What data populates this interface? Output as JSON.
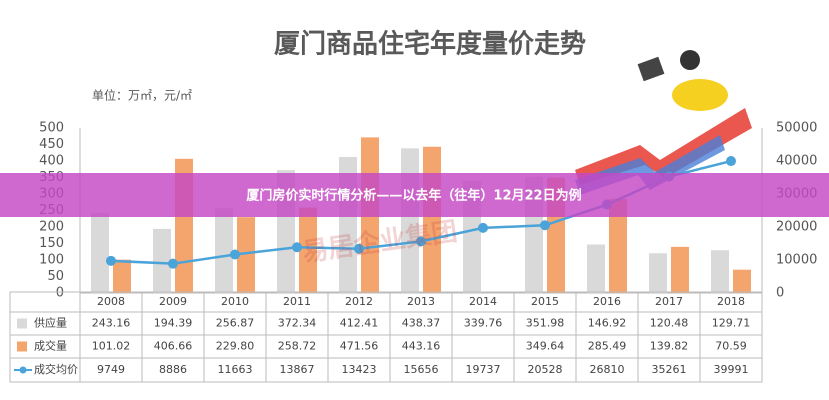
{
  "banner": "厦门房价实时行情分析——以去年（往年）12月22日为例",
  "chart_data": {
    "type": "bar",
    "title": "厦门商品住宅年度量价走势",
    "subtitle": "单位：万㎡，元/㎡",
    "watermark": "易居企业集团",
    "categories": [
      "2008",
      "2009",
      "2010",
      "2011",
      "2012",
      "2013",
      "2014",
      "2015",
      "2016",
      "2017",
      "2018"
    ],
    "series": [
      {
        "name": "供应量",
        "color": "#d9d9d9",
        "values": [
          243.16,
          194.39,
          256.87,
          372.34,
          412.41,
          438.37,
          339.76,
          351.98,
          146.92,
          120.48,
          129.71
        ]
      },
      {
        "name": "成交量",
        "color": "#f4a56e",
        "values": [
          101.02,
          406.66,
          229.8,
          258.72,
          471.56,
          443.16,
          null,
          349.64,
          285.49,
          139.82,
          70.59
        ],
        "value_labels": [
          "101.02",
          "406.66",
          "229.80",
          "258.72",
          "471.56",
          "443.16",
          null,
          "349.64",
          "285.49",
          "139.82",
          "70.59"
        ]
      },
      {
        "name": "成交均价",
        "color": "#4aa3d9",
        "axis": "y2",
        "type": "line",
        "values": [
          9749,
          8886,
          11663,
          13867,
          13423,
          15656,
          19737,
          20528,
          26810,
          35261,
          39991
        ]
      }
    ],
    "ylim": [
      0,
      500
    ],
    "yticks": [
      0,
      50,
      100,
      150,
      200,
      250,
      300,
      350,
      400,
      450,
      500
    ],
    "y2lim": [
      0,
      50000
    ],
    "y2ticks": [
      0,
      10000,
      20000,
      30000,
      40000,
      50000
    ]
  }
}
